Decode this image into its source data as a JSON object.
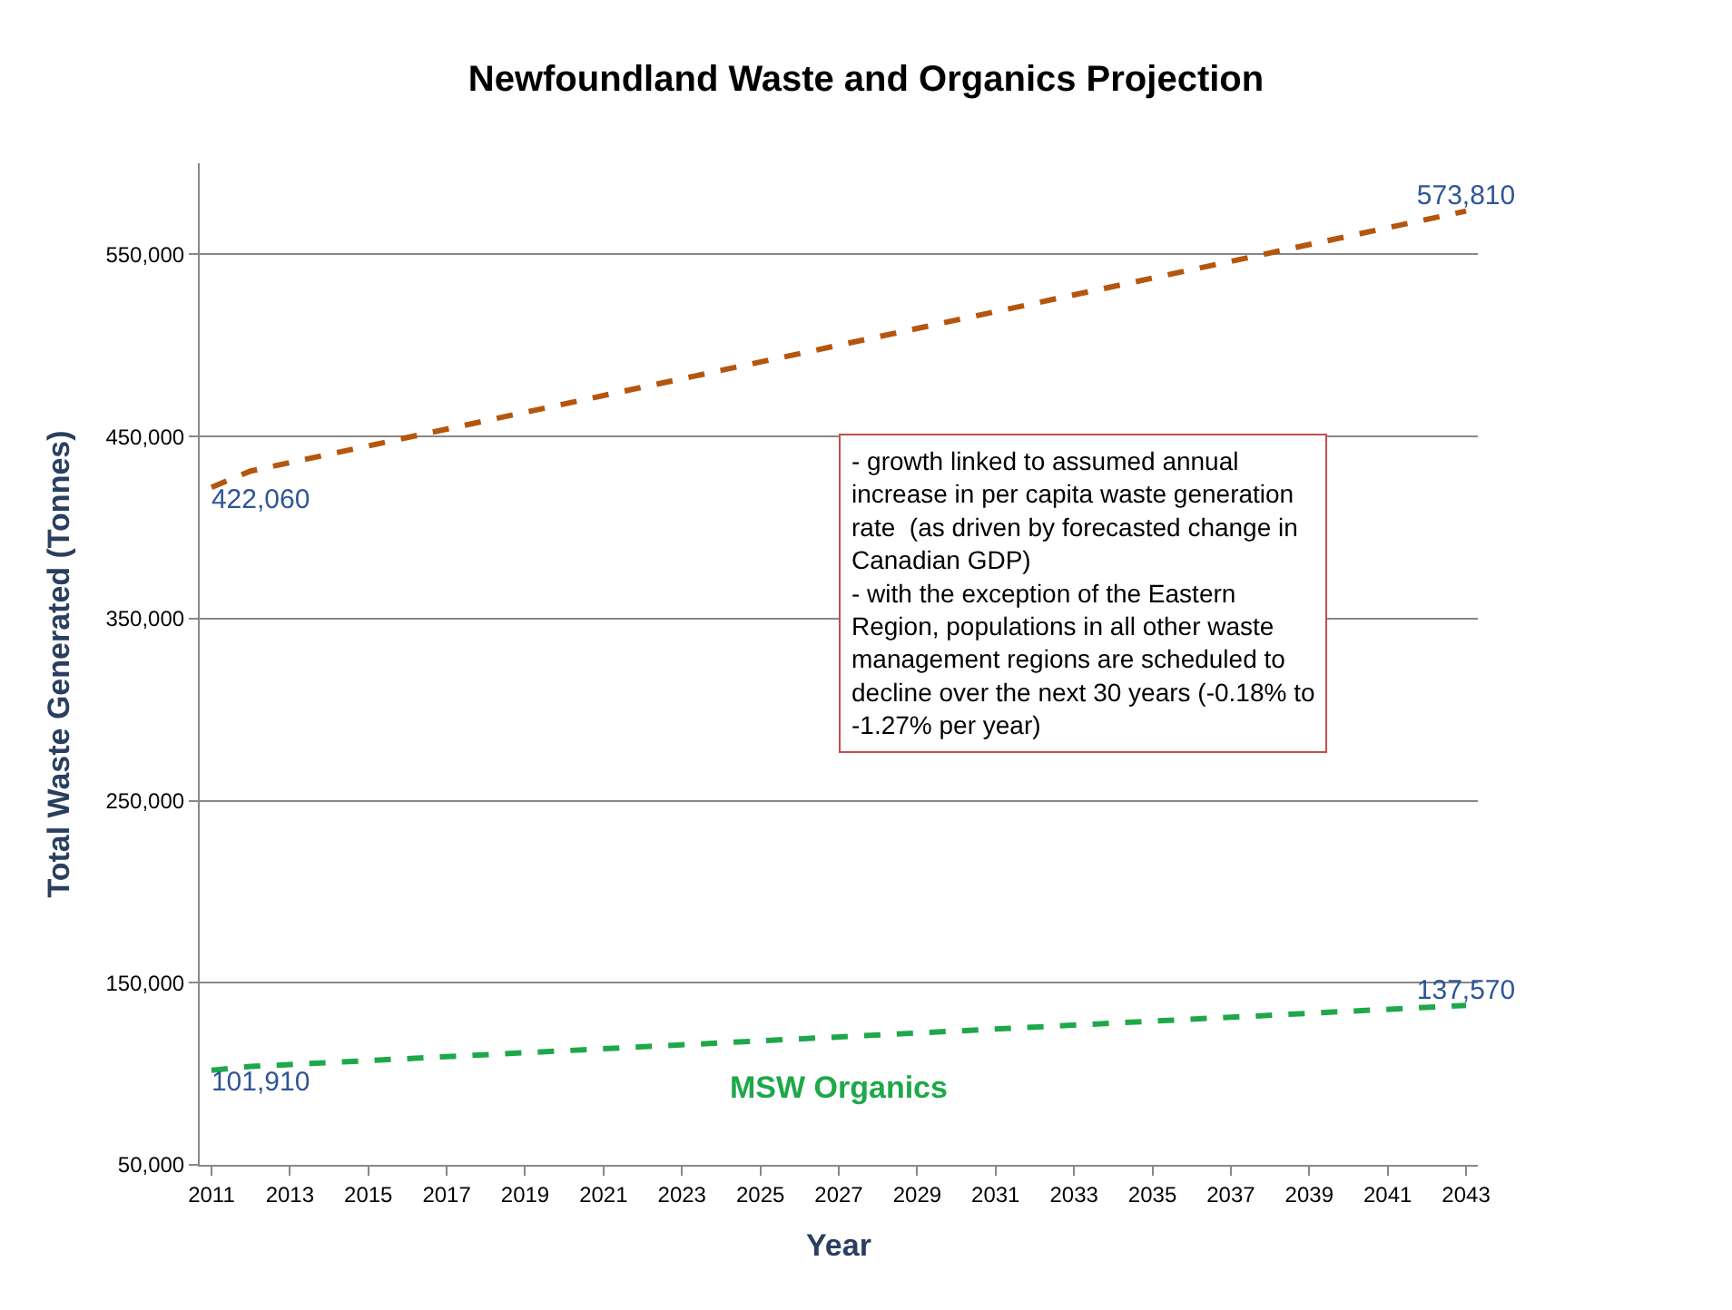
{
  "chart_data": {
    "type": "line",
    "title": "Newfoundland Waste and Organics Projection",
    "xlabel": "Year",
    "ylabel": "Total Waste Generated (Tonnes)",
    "series": [
      {
        "color": "#b5560f",
        "x": [
          2011,
          2012,
          2043
        ],
        "values": [
          422060,
          431000,
          573810
        ],
        "value_labels": [
          "422,060",
          null,
          "573,810"
        ]
      },
      {
        "name": "MSW Organics",
        "color": "#1ea84a",
        "x": [
          2011,
          2012,
          2043
        ],
        "values": [
          101910,
          104000,
          137570
        ],
        "value_labels": [
          "101,910",
          null,
          "137,570"
        ]
      }
    ],
    "xlim": [
      2010.7,
      2043.3
    ],
    "xticks": [
      2011,
      2013,
      2015,
      2017,
      2019,
      2021,
      2023,
      2025,
      2027,
      2029,
      2031,
      2033,
      2035,
      2037,
      2039,
      2041,
      2043
    ],
    "ylim": [
      50000,
      600000
    ],
    "yticks": [
      {
        "value": 50000,
        "label": "50,000"
      },
      {
        "value": 150000,
        "label": "150,000"
      },
      {
        "value": 250000,
        "label": "250,000"
      },
      {
        "value": 350000,
        "label": "350,000"
      },
      {
        "value": 450000,
        "label": "450,000"
      },
      {
        "value": 550000,
        "label": "550,000"
      }
    ],
    "annotations": [
      "- growth linked to assumed annual\nincrease in per capita waste generation\nrate  (as driven by forecasted change in\nCanadian GDP)\n- with the exception of the Eastern\nRegion, populations in all other waste\nmanagement regions are scheduled to\ndecline over the next 30 years (-0.18% to\n-1.27% per year)"
    ],
    "grid": "y",
    "legend": false,
    "line_style": "dashed",
    "marker": "none"
  }
}
